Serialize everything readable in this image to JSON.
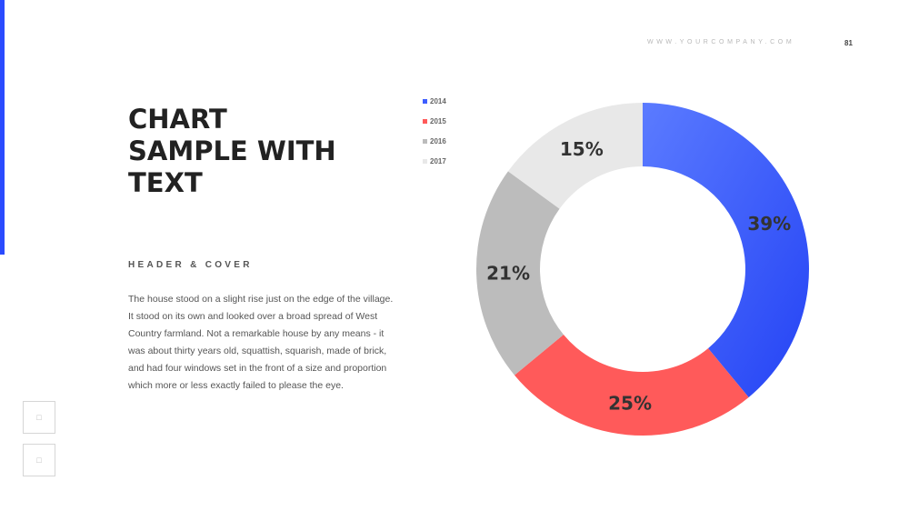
{
  "header": {
    "website": "WWW.YOURCOMPANY.COM",
    "page_number": "81"
  },
  "title_lines": [
    "CHART",
    "SAMPLE WITH",
    "TEXT"
  ],
  "subheader": "HEADER & COVER",
  "body": "The house stood on a slight rise just on the edge of the village. It stood on its own and looked over a broad spread of West Country farmland. Not a remarkable house by any means - it was about thirty years old, squattish, squarish, made of brick, and had four windows set in the front of a size and proportion which more or less exactly failed to please the eye.",
  "side_buttons": [
    {
      "icon": "image-placeholder-icon"
    },
    {
      "icon": "image-placeholder-icon"
    }
  ],
  "colors": {
    "accent": "#2a4bff",
    "blue_light": "#5b7bff",
    "blue_dark": "#2443f5",
    "red": "#ff5a5a",
    "gray": "#bcbcbc",
    "light_gray": "#e8e8e8"
  },
  "chart_data": {
    "type": "pie",
    "donut": true,
    "title": "",
    "categories": [
      "2014",
      "2015",
      "2016",
      "2017"
    ],
    "values": [
      39,
      25,
      21,
      15
    ],
    "labels": [
      "39%",
      "25%",
      "21%",
      "15%"
    ],
    "colors": [
      "#3e5eff",
      "#ff5a5a",
      "#bcbcbc",
      "#e8e8e8"
    ],
    "legend_position": "top-left"
  }
}
